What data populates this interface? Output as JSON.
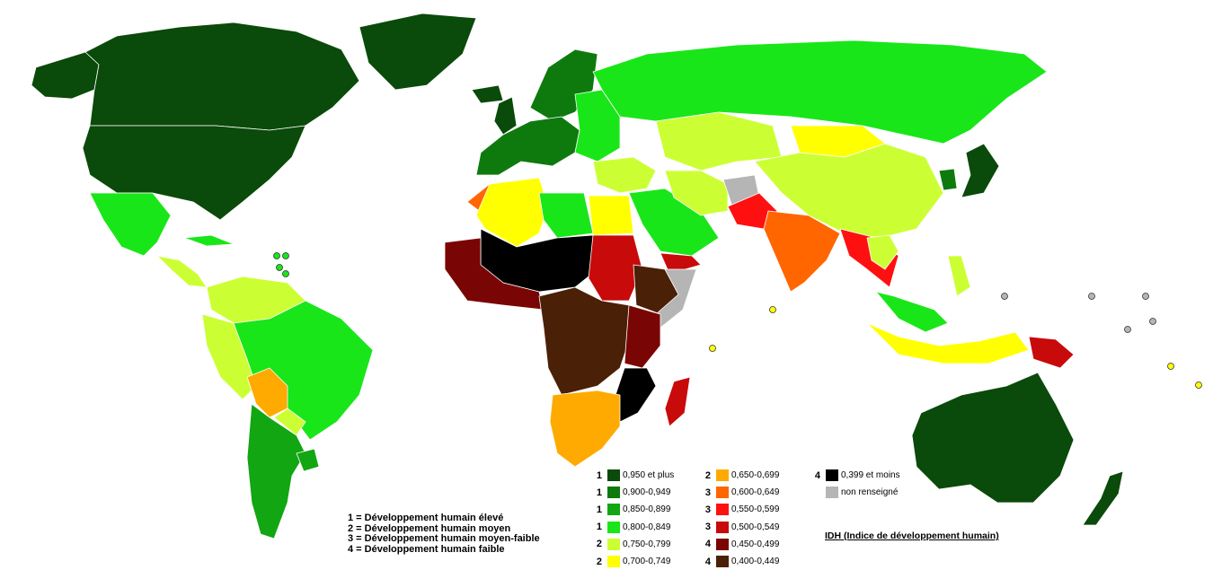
{
  "colors": {
    "c950": "#0a4a0a",
    "c900": "#0e7a0e",
    "c850": "#12a612",
    "c800": "#19e619",
    "c750": "#ccff33",
    "c700": "#ffff00",
    "c650": "#ffaa00",
    "c600": "#ff6600",
    "c550": "#ff1010",
    "c500": "#c80a0a",
    "c450": "#7a0505",
    "c400": "#4a2006",
    "c399": "#000000",
    "none": "#b5b5b5"
  },
  "legend": [
    {
      "level": "1",
      "label": "0,950 et plus",
      "color_key": "c950"
    },
    {
      "level": "1",
      "label": "0,900-0,949",
      "color_key": "c900"
    },
    {
      "level": "1",
      "label": "0,850-0,899",
      "color_key": "c850"
    },
    {
      "level": "1",
      "label": "0,800-0,849",
      "color_key": "c800"
    },
    {
      "level": "2",
      "label": "0,750-0,799",
      "color_key": "c750"
    },
    {
      "level": "2",
      "label": "0,700-0,749",
      "color_key": "c700"
    },
    {
      "level": "2",
      "label": "0,650-0,699",
      "color_key": "c650"
    },
    {
      "level": "3",
      "label": "0,600-0,649",
      "color_key": "c600"
    },
    {
      "level": "3",
      "label": "0,550-0,599",
      "color_key": "c550"
    },
    {
      "level": "3",
      "label": "0,500-0,549",
      "color_key": "c500"
    },
    {
      "level": "4",
      "label": "0,450-0,499",
      "color_key": "c450"
    },
    {
      "level": "4",
      "label": "0,400-0,449",
      "color_key": "c400"
    },
    {
      "level": "4",
      "label": "0,399 et moins",
      "color_key": "c399"
    },
    {
      "level": "",
      "label": "non renseigné",
      "color_key": "none"
    }
  ],
  "levels": [
    "1 = Développement humain élevé",
    "2 = Développement humain moyen",
    "3 = Développement humain moyen-faible",
    "4 = Développement humain faible"
  ],
  "idh_title": "IDH (Indice de développement humain)",
  "regions": [
    {
      "name": "canada",
      "color_key": "c950"
    },
    {
      "name": "usa",
      "color_key": "c950"
    },
    {
      "name": "alaska",
      "color_key": "c950"
    },
    {
      "name": "greenland",
      "color_key": "c950"
    },
    {
      "name": "mexico",
      "color_key": "c800"
    },
    {
      "name": "central-america",
      "color_key": "c750"
    },
    {
      "name": "cuba",
      "color_key": "c800"
    },
    {
      "name": "brazil",
      "color_key": "c800"
    },
    {
      "name": "venezuela-colombia",
      "color_key": "c750"
    },
    {
      "name": "peru-ecuador",
      "color_key": "c750"
    },
    {
      "name": "bolivia",
      "color_key": "c650"
    },
    {
      "name": "paraguay",
      "color_key": "c750"
    },
    {
      "name": "argentina-chile",
      "color_key": "c850"
    },
    {
      "name": "uruguay",
      "color_key": "c850"
    },
    {
      "name": "western-europe",
      "color_key": "c900"
    },
    {
      "name": "scandinavia",
      "color_key": "c900"
    },
    {
      "name": "iceland",
      "color_key": "c950"
    },
    {
      "name": "uk",
      "color_key": "c950"
    },
    {
      "name": "eastern-europe",
      "color_key": "c800"
    },
    {
      "name": "russia",
      "color_key": "c800"
    },
    {
      "name": "central-asia",
      "color_key": "c750"
    },
    {
      "name": "mongolia",
      "color_key": "c700"
    },
    {
      "name": "china",
      "color_key": "c750"
    },
    {
      "name": "middle-east",
      "color_key": "c750"
    },
    {
      "name": "arabia",
      "color_key": "c800"
    },
    {
      "name": "yemen",
      "color_key": "c500"
    },
    {
      "name": "iran",
      "color_key": "c750"
    },
    {
      "name": "afghanistan",
      "color_key": "none"
    },
    {
      "name": "pakistan",
      "color_key": "c550"
    },
    {
      "name": "india",
      "color_key": "c600"
    },
    {
      "name": "southeast-asia",
      "color_key": "c550"
    },
    {
      "name": "thailand",
      "color_key": "c750"
    },
    {
      "name": "malaysia",
      "color_key": "c800"
    },
    {
      "name": "indonesia",
      "color_key": "c700"
    },
    {
      "name": "philippines",
      "color_key": "c750"
    },
    {
      "name": "png",
      "color_key": "c500"
    },
    {
      "name": "japan",
      "color_key": "c950"
    },
    {
      "name": "korea",
      "color_key": "c900"
    },
    {
      "name": "australia",
      "color_key": "c950"
    },
    {
      "name": "new-zealand",
      "color_key": "c950"
    },
    {
      "name": "north-africa",
      "color_key": "c700"
    },
    {
      "name": "libya",
      "color_key": "c800"
    },
    {
      "name": "egypt",
      "color_key": "c700"
    },
    {
      "name": "morocco",
      "color_key": "c600"
    },
    {
      "name": "sahel",
      "color_key": "c399"
    },
    {
      "name": "sudan",
      "color_key": "c500"
    },
    {
      "name": "ethiopia",
      "color_key": "c400"
    },
    {
      "name": "somalia",
      "color_key": "none"
    },
    {
      "name": "west-africa",
      "color_key": "c450"
    },
    {
      "name": "central-africa",
      "color_key": "c400"
    },
    {
      "name": "east-africa",
      "color_key": "c450"
    },
    {
      "name": "mozambique",
      "color_key": "c399"
    },
    {
      "name": "southern-africa",
      "color_key": "c650"
    },
    {
      "name": "madagascar",
      "color_key": "c500"
    }
  ],
  "small_states": [
    {
      "name": "caribbean-islands",
      "color_key": "c800"
    },
    {
      "name": "pacific-islands",
      "color_key": "none"
    },
    {
      "name": "indian-ocean-islands",
      "color_key": "c700"
    }
  ]
}
